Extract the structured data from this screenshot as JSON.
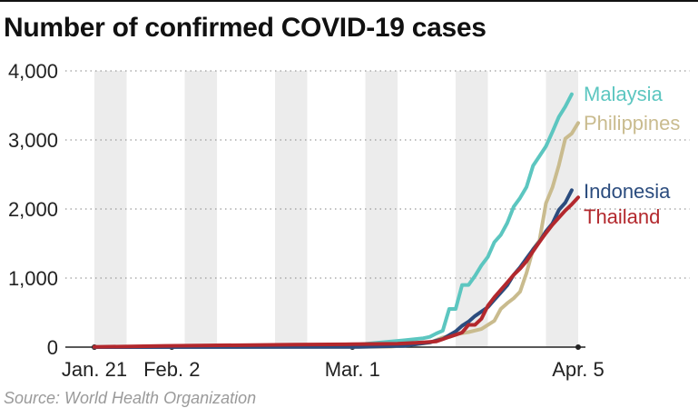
{
  "title": "Number of confirmed COVID-19 cases",
  "source": "Source: World Health Organization",
  "chart_data": {
    "type": "line",
    "title": "Number of confirmed COVID-19 cases",
    "xlabel": "",
    "ylabel": "",
    "x_start": "2020-01-21",
    "x_end": "2020-04-05",
    "xlim": [
      "2020-01-21",
      "2020-04-05"
    ],
    "ylim": [
      0,
      4000
    ],
    "yticks": [
      0,
      1000,
      2000,
      3000,
      4000
    ],
    "ytick_labels": [
      "0",
      "1,000",
      "2,000",
      "3,000",
      "4,000"
    ],
    "xticks": [
      {
        "date": "2020-01-21",
        "label": "Jan. 21"
      },
      {
        "date": "2020-02-02",
        "label": "Feb. 2"
      },
      {
        "date": "2020-03-01",
        "label": "Mar. 1"
      },
      {
        "date": "2020-04-05",
        "label": "Apr. 5"
      }
    ],
    "grid": "horizontal dotted",
    "weekly_bands": true,
    "series": [
      {
        "name": "Malaysia",
        "color": "#5cc6c0",
        "points": [
          [
            "2020-01-21",
            0
          ],
          [
            "2020-02-01",
            10
          ],
          [
            "2020-02-21",
            22
          ],
          [
            "2020-03-01",
            29
          ],
          [
            "2020-03-09",
            99
          ],
          [
            "2020-03-12",
            129
          ],
          [
            "2020-03-13",
            149
          ],
          [
            "2020-03-14",
            197
          ],
          [
            "2020-03-15",
            238
          ],
          [
            "2020-03-16",
            553
          ],
          [
            "2020-03-17",
            553
          ],
          [
            "2020-03-18",
            900
          ],
          [
            "2020-03-19",
            900
          ],
          [
            "2020-03-20",
            1030
          ],
          [
            "2020-03-21",
            1183
          ],
          [
            "2020-03-22",
            1306
          ],
          [
            "2020-03-23",
            1518
          ],
          [
            "2020-03-24",
            1624
          ],
          [
            "2020-03-25",
            1796
          ],
          [
            "2020-03-26",
            2031
          ],
          [
            "2020-03-27",
            2161
          ],
          [
            "2020-03-28",
            2320
          ],
          [
            "2020-03-29",
            2626
          ],
          [
            "2020-03-30",
            2766
          ],
          [
            "2020-03-31",
            2908
          ],
          [
            "2020-04-01",
            3116
          ],
          [
            "2020-04-02",
            3333
          ],
          [
            "2020-04-03",
            3483
          ],
          [
            "2020-04-04",
            3662
          ]
        ]
      },
      {
        "name": "Philippines",
        "color": "#c9bb8e",
        "points": [
          [
            "2020-01-21",
            0
          ],
          [
            "2020-02-01",
            2
          ],
          [
            "2020-03-01",
            3
          ],
          [
            "2020-03-07",
            6
          ],
          [
            "2020-03-10",
            33
          ],
          [
            "2020-03-13",
            64
          ],
          [
            "2020-03-15",
            140
          ],
          [
            "2020-03-17",
            187
          ],
          [
            "2020-03-19",
            217
          ],
          [
            "2020-03-21",
            262
          ],
          [
            "2020-03-23",
            380
          ],
          [
            "2020-03-24",
            552
          ],
          [
            "2020-03-25",
            636
          ],
          [
            "2020-03-26",
            707
          ],
          [
            "2020-03-27",
            803
          ],
          [
            "2020-03-28",
            1075
          ],
          [
            "2020-03-29",
            1418
          ],
          [
            "2020-03-30",
            1546
          ],
          [
            "2020-03-31",
            2084
          ],
          [
            "2020-04-01",
            2311
          ],
          [
            "2020-04-02",
            2633
          ],
          [
            "2020-04-03",
            3018
          ],
          [
            "2020-04-04",
            3094
          ],
          [
            "2020-04-05",
            3246
          ]
        ]
      },
      {
        "name": "Indonesia",
        "color": "#2b4c7e",
        "points": [
          [
            "2020-01-21",
            0
          ],
          [
            "2020-03-02",
            2
          ],
          [
            "2020-03-09",
            19
          ],
          [
            "2020-03-13",
            69
          ],
          [
            "2020-03-15",
            117
          ],
          [
            "2020-03-16",
            172
          ],
          [
            "2020-03-17",
            227
          ],
          [
            "2020-03-18",
            309
          ],
          [
            "2020-03-19",
            369
          ],
          [
            "2020-03-20",
            450
          ],
          [
            "2020-03-21",
            514
          ],
          [
            "2020-03-22",
            579
          ],
          [
            "2020-03-23",
            686
          ],
          [
            "2020-03-24",
            790
          ],
          [
            "2020-03-25",
            893
          ],
          [
            "2020-03-26",
            1046
          ],
          [
            "2020-03-27",
            1155
          ],
          [
            "2020-03-28",
            1285
          ],
          [
            "2020-03-29",
            1414
          ],
          [
            "2020-03-30",
            1528
          ],
          [
            "2020-03-31",
            1677
          ],
          [
            "2020-04-01",
            1790
          ],
          [
            "2020-04-02",
            1986
          ],
          [
            "2020-04-03",
            2092
          ],
          [
            "2020-04-04",
            2273
          ]
        ]
      },
      {
        "name": "Thailand",
        "color": "#b3282d",
        "points": [
          [
            "2020-01-21",
            2
          ],
          [
            "2020-02-01",
            19
          ],
          [
            "2020-02-21",
            35
          ],
          [
            "2020-03-01",
            42
          ],
          [
            "2020-03-08",
            50
          ],
          [
            "2020-03-12",
            70
          ],
          [
            "2020-03-14",
            82
          ],
          [
            "2020-03-15",
            114
          ],
          [
            "2020-03-16",
            147
          ],
          [
            "2020-03-17",
            177
          ],
          [
            "2020-03-18",
            212
          ],
          [
            "2020-03-19",
            322
          ],
          [
            "2020-03-20",
            322
          ],
          [
            "2020-03-21",
            411
          ],
          [
            "2020-03-22",
            599
          ],
          [
            "2020-03-23",
            721
          ],
          [
            "2020-03-24",
            827
          ],
          [
            "2020-03-25",
            934
          ],
          [
            "2020-03-26",
            1045
          ],
          [
            "2020-03-27",
            1136
          ],
          [
            "2020-03-28",
            1245
          ],
          [
            "2020-03-29",
            1388
          ],
          [
            "2020-03-30",
            1524
          ],
          [
            "2020-03-31",
            1651
          ],
          [
            "2020-04-01",
            1771
          ],
          [
            "2020-04-02",
            1875
          ],
          [
            "2020-04-03",
            1978
          ],
          [
            "2020-04-04",
            2067
          ],
          [
            "2020-04-05",
            2169
          ]
        ]
      }
    ]
  }
}
